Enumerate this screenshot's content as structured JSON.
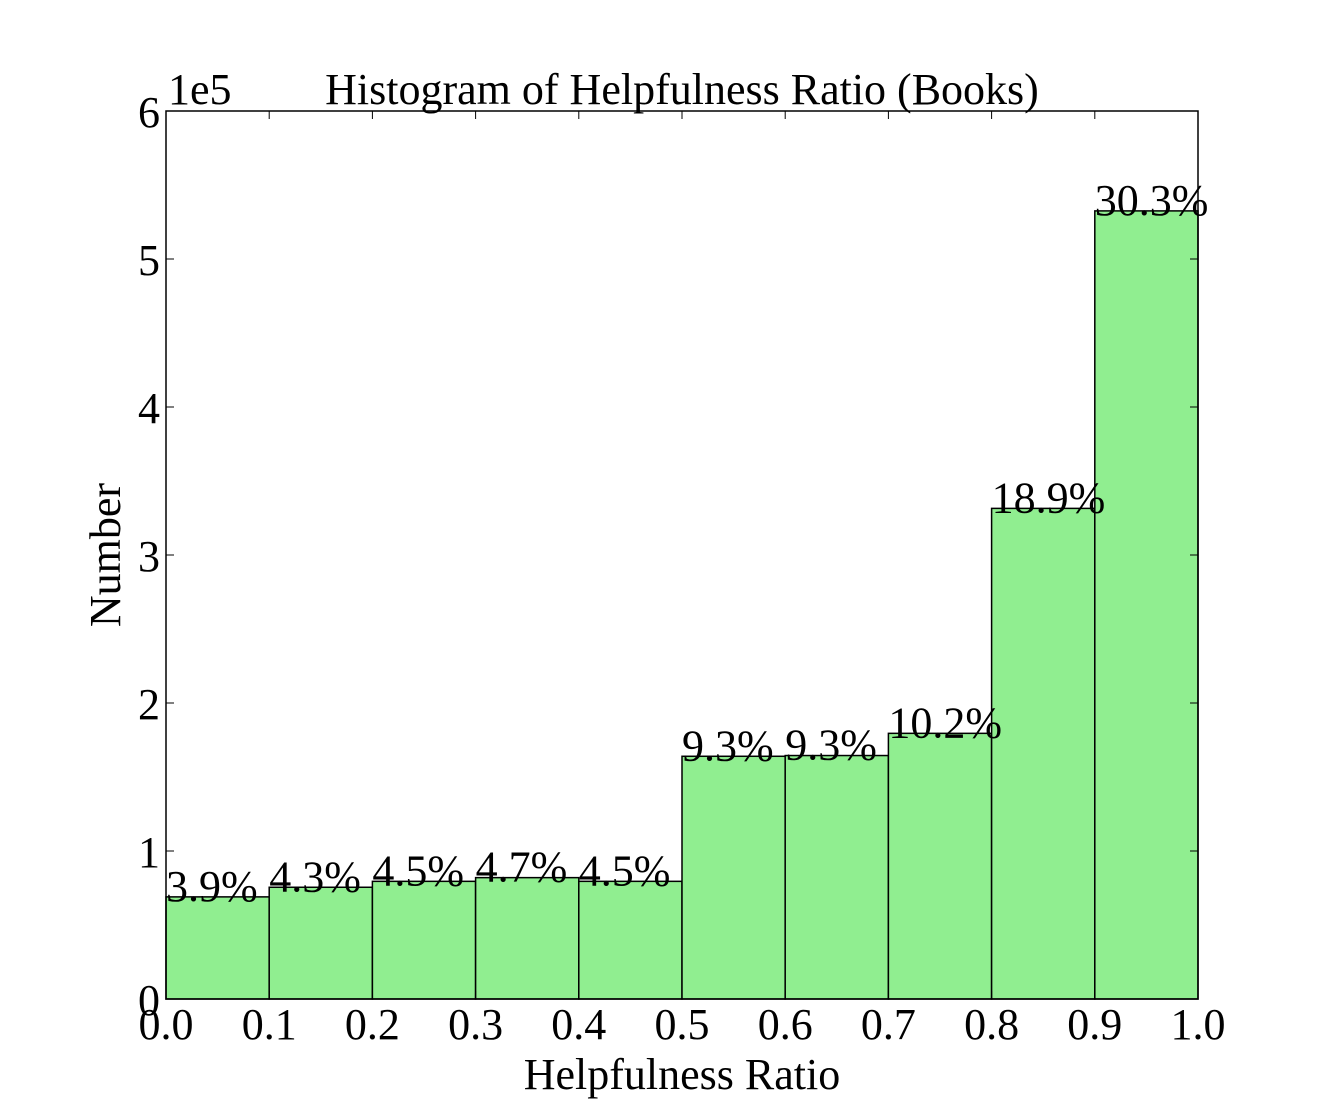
{
  "chart_data": {
    "type": "bar",
    "title": "Histogram of Helpfulness Ratio (Books)",
    "xlabel": "Helpfulness Ratio",
    "ylabel": "Number",
    "y_multiplier": "1e5",
    "xlim": [
      0.0,
      1.0
    ],
    "ylim": [
      0,
      6
    ],
    "x_ticks": [
      "0.0",
      "0.1",
      "0.2",
      "0.3",
      "0.4",
      "0.5",
      "0.6",
      "0.7",
      "0.8",
      "0.9",
      "1.0"
    ],
    "y_ticks": [
      "0",
      "1",
      "2",
      "3",
      "4",
      "5",
      "6"
    ],
    "bin_edges": [
      0.0,
      0.1,
      0.2,
      0.3,
      0.4,
      0.5,
      0.6,
      0.7,
      0.8,
      0.9,
      1.0
    ],
    "values": [
      0.69,
      0.755,
      0.795,
      0.82,
      0.795,
      1.64,
      1.645,
      1.795,
      3.315,
      5.325
    ],
    "bar_labels": [
      "3.9%",
      "4.3%",
      "4.5%",
      "4.7%",
      "4.5%",
      "9.3%",
      "9.3%",
      "10.2%",
      "18.9%",
      "30.3%"
    ],
    "grid": false,
    "colors": {
      "bar_fill": "#90ee90",
      "bar_edge": "#000000",
      "axes": "#000000"
    }
  }
}
